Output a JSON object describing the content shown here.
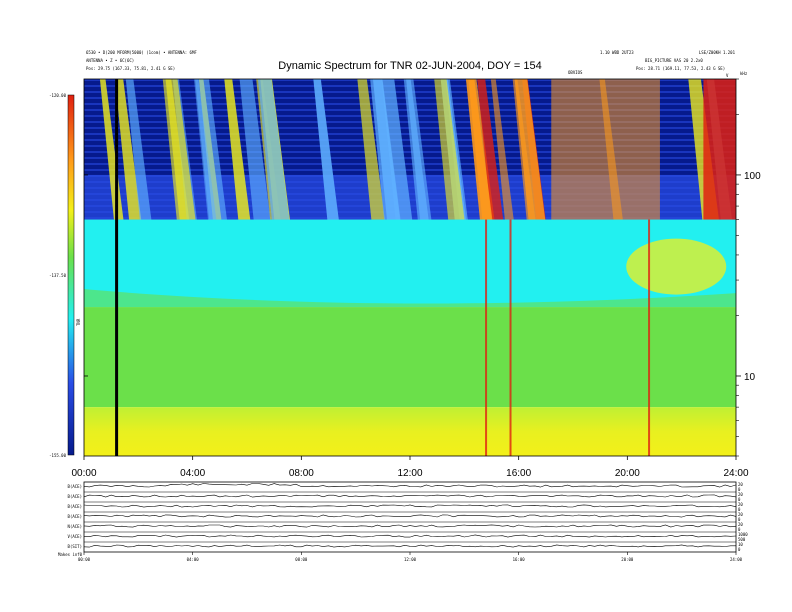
{
  "header": {
    "title": "Dynamic Spectrum for TNR 02-JUN-2004, DOY = 154",
    "left_line1": "6530 • D(200 MFORM(5000) (1com) • ANTENNA: 6MF",
    "left_line2": "ANTENNA • Z • 6C(6C)",
    "left_line3": "Pos:  29.75 (167.33, 75.81, 2.41 G SE)",
    "right_line1": "1.10 WBD 2UT23",
    "right_line2": "LSE/Z00KH 1.201",
    "right_line3": "BIG_PICTURE VAS 20 2.2x0",
    "right_line4": "Pos:  28.71 (169.11, 77.53, 2.43 G SE)",
    "mid_label": "OBVIOS",
    "freq_unit": "kHz",
    "corner_v": "V"
  },
  "colors": {
    "background": "#ffffff",
    "dark_blue": "#061a8c",
    "blue": "#2a4de6",
    "light_blue": "#5fb0ff",
    "cyan": "#22f0f0",
    "green": "#6be04a",
    "yellow_green": "#bff033",
    "yellow": "#f3f019",
    "orange": "#ff9a1a",
    "red": "#e02010"
  },
  "chart_data": [
    {
      "type": "heatmap",
      "title": "Dynamic Spectrum for TNR 02-JUN-2004, DOY = 154",
      "x_ticks": [
        "00:00",
        "04:00",
        "08:00",
        "12:00",
        "16:00",
        "20:00",
        "24:00"
      ],
      "xlim_hours": [
        0,
        24
      ],
      "y_scale": "log",
      "y_ticks": [
        "100",
        "10"
      ],
      "y_tick_values": [
        100,
        10
      ],
      "ylim_khz": [
        4,
        300
      ],
      "y_unit": "kHz",
      "colorbar": {
        "ticks": [
          "-120.00",
          "-137.50",
          "-155.00"
        ],
        "range": [
          -155,
          -120
        ],
        "label": "TNR"
      },
      "bands": [
        {
          "name": "upper band",
          "freq_khz": [
            60,
            300
          ],
          "dominant": "dark blue with cyan/yellow/red drifting emissions"
        },
        {
          "name": "cyan band",
          "freq_khz": [
            22,
            60
          ],
          "dominant": "cyan"
        },
        {
          "name": "green band",
          "freq_khz": [
            7,
            22
          ],
          "dominant": "green"
        },
        {
          "name": "low band",
          "freq_khz": [
            4,
            7
          ],
          "dominant": "yellow"
        }
      ],
      "data_gap_hours": [
        1.2,
        1.2
      ],
      "spike_hours": [
        14.8,
        15.7,
        20.8
      ]
    },
    {
      "type": "line",
      "x_ticks": [
        "00:00",
        "04:00",
        "08:00",
        "12:00",
        "16:00",
        "20:00",
        "24:00"
      ],
      "panels": [
        {
          "label": "B(ACE)",
          "ticks": [
            "20",
            "0"
          ]
        },
        {
          "label": "B(ACE)",
          "ticks": [
            "20",
            "0"
          ]
        },
        {
          "label": "B(ACE)",
          "ticks": [
            "20",
            "0"
          ]
        },
        {
          "label": "B(ACE)",
          "ticks": [
            "20",
            "0"
          ]
        },
        {
          "label": "N(ACE)",
          "ticks": [
            "20",
            "0"
          ]
        },
        {
          "label": "V(ACE)",
          "ticks": [
            "1000",
            "500"
          ]
        },
        {
          "label": "B(SIT)",
          "ticks": [
            "10",
            "0"
          ]
        }
      ],
      "footer": "Makes  inf0"
    }
  ]
}
